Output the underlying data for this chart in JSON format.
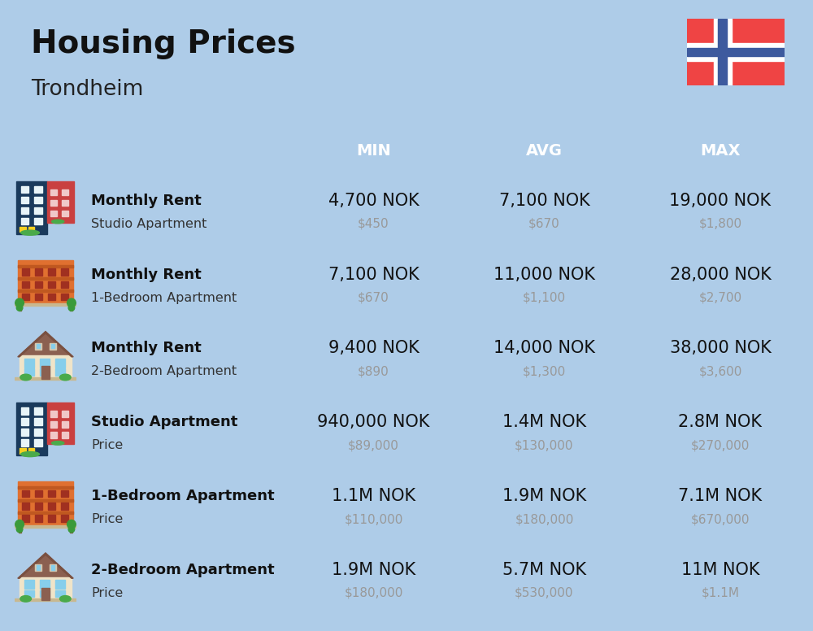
{
  "title": "Housing Prices",
  "subtitle": "Trondheim",
  "background_color": "#aecce8",
  "header_bg_color": "#4d7daa",
  "header_text_color": "#ffffff",
  "row_bg_even": "#c8d9eb",
  "row_bg_odd": "#bccfe3",
  "divider_color": "#ffffff",
  "col_headers": [
    "MIN",
    "AVG",
    "MAX"
  ],
  "rows": [
    {
      "bold_label": "Monthly Rent",
      "sub_label": "Studio Apartment",
      "icon": "blue_red_tall",
      "min_nok": "4,700 NOK",
      "min_usd": "$450",
      "avg_nok": "7,100 NOK",
      "avg_usd": "$670",
      "max_nok": "19,000 NOK",
      "max_usd": "$1,800"
    },
    {
      "bold_label": "Monthly Rent",
      "sub_label": "1-Bedroom Apartment",
      "icon": "orange_wide",
      "min_nok": "7,100 NOK",
      "min_usd": "$670",
      "avg_nok": "11,000 NOK",
      "avg_usd": "$1,100",
      "max_nok": "28,000 NOK",
      "max_usd": "$2,700"
    },
    {
      "bold_label": "Monthly Rent",
      "sub_label": "2-Bedroom Apartment",
      "icon": "beige_roof",
      "min_nok": "9,400 NOK",
      "min_usd": "$890",
      "avg_nok": "14,000 NOK",
      "avg_usd": "$1,300",
      "max_nok": "38,000 NOK",
      "max_usd": "$3,600"
    },
    {
      "bold_label": "Studio Apartment",
      "sub_label": "Price",
      "icon": "blue_red_tall",
      "min_nok": "940,000 NOK",
      "min_usd": "$89,000",
      "avg_nok": "1.4M NOK",
      "avg_usd": "$130,000",
      "max_nok": "2.8M NOK",
      "max_usd": "$270,000"
    },
    {
      "bold_label": "1-Bedroom Apartment",
      "sub_label": "Price",
      "icon": "orange_wide",
      "min_nok": "1.1M NOK",
      "min_usd": "$110,000",
      "avg_nok": "1.9M NOK",
      "avg_usd": "$180,000",
      "max_nok": "7.1M NOK",
      "max_usd": "$670,000"
    },
    {
      "bold_label": "2-Bedroom Apartment",
      "sub_label": "Price",
      "icon": "beige_roof",
      "min_nok": "1.9M NOK",
      "min_usd": "$180,000",
      "avg_nok": "5.7M NOK",
      "avg_usd": "$530,000",
      "max_nok": "11M NOK",
      "max_usd": "$1.1M"
    }
  ],
  "nok_fontsize": 15,
  "usd_fontsize": 11,
  "usd_color": "#999999",
  "label_bold_fontsize": 13,
  "label_sub_fontsize": 11.5,
  "header_fontsize": 14
}
